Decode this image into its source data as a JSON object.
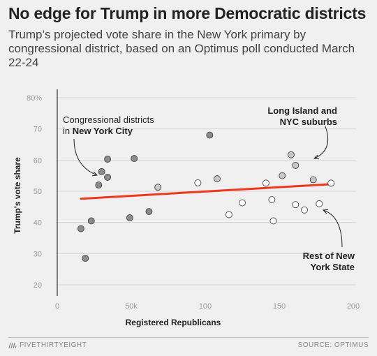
{
  "header": {
    "title": "No edge for Trump in more Democratic districts",
    "subtitle": "Trump’s projected vote share in the New York primary by congressional district, based on an Optimus poll conducted March 22-24"
  },
  "footer": {
    "brand": "FIVETHIRTYEIGHT",
    "source": "SOURCE: OPTIMUS"
  },
  "colors": {
    "nyc_fill": "#8c8c8c",
    "suburb_fill": "#c8c8c8",
    "rest_fill": "#ffffff",
    "trend": "#ee3a1c",
    "grid": "#d6d6d6"
  },
  "chart_data": {
    "type": "scatter",
    "xlabel": "Registered Republicans",
    "ylabel": "Trump's vote share",
    "xlim": [
      0,
      200
    ],
    "ylim": [
      20,
      80
    ],
    "x_ticks": [
      "0",
      "50k",
      "100",
      "150",
      "200"
    ],
    "y_ticks": [
      "20",
      "30",
      "40",
      "50",
      "60",
      "70",
      "80%"
    ],
    "grid": "horizontal",
    "series": [
      {
        "group": "nyc",
        "points": [
          {
            "x": 16,
            "y": 38
          },
          {
            "x": 19,
            "y": 28.5
          },
          {
            "x": 23,
            "y": 40.5
          },
          {
            "x": 28,
            "y": 52
          },
          {
            "x": 30,
            "y": 56.3
          },
          {
            "x": 34,
            "y": 60.3
          },
          {
            "x": 34,
            "y": 54.5
          },
          {
            "x": 49,
            "y": 41.5
          },
          {
            "x": 52,
            "y": 60.5
          },
          {
            "x": 62,
            "y": 43.5
          },
          {
            "x": 103,
            "y": 68
          }
        ]
      },
      {
        "group": "suburbs",
        "points": [
          {
            "x": 68,
            "y": 51.3
          },
          {
            "x": 108,
            "y": 54
          },
          {
            "x": 152,
            "y": 55
          },
          {
            "x": 158,
            "y": 61.7
          },
          {
            "x": 161,
            "y": 58.3
          },
          {
            "x": 173,
            "y": 53.7
          }
        ]
      },
      {
        "group": "rest",
        "points": [
          {
            "x": 95,
            "y": 52.7
          },
          {
            "x": 116,
            "y": 42.5
          },
          {
            "x": 125,
            "y": 46.3
          },
          {
            "x": 141,
            "y": 52.6
          },
          {
            "x": 145,
            "y": 47.3
          },
          {
            "x": 146,
            "y": 40.5
          },
          {
            "x": 161,
            "y": 45.7
          },
          {
            "x": 167,
            "y": 44
          },
          {
            "x": 177,
            "y": 46
          },
          {
            "x": 185,
            "y": 52.6
          }
        ]
      }
    ],
    "trend_line": {
      "x": [
        16,
        186
      ],
      "y": [
        47.6,
        52.3
      ]
    },
    "annotations": [
      {
        "lines": [
          "Congressional districts",
          "in |New York City"
        ],
        "group": "nyc"
      },
      {
        "lines": [
          "Long Island and",
          "NYC suburbs"
        ],
        "group": "suburbs"
      },
      {
        "lines": [
          "Rest of New",
          "York State"
        ],
        "group": "rest"
      }
    ]
  }
}
